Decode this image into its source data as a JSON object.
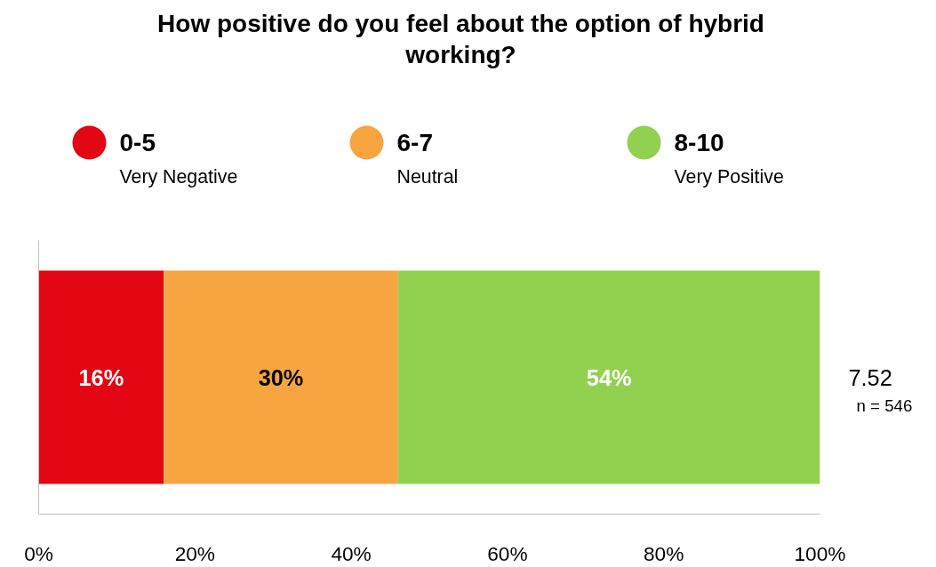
{
  "chart_data": {
    "type": "bar",
    "orientation": "horizontal",
    "stacked": true,
    "title": "How positive do you feel about the option of hybrid working?",
    "categories": [
      null
    ],
    "series": [
      {
        "name": "0-5\nVery Negative",
        "color": "#e30613",
        "values": [
          16
        ]
      },
      {
        "name": "6-7\nNeutral",
        "color": "#f7a541",
        "values": [
          30
        ]
      },
      {
        "name": "8-10\nVery Positive",
        "color": "#92d050",
        "values": [
          54
        ]
      }
    ],
    "value_labels": [
      "16%",
      "30%",
      "54%"
    ],
    "xlim": [
      0,
      100
    ],
    "xticks": [
      {
        "value": 0,
        "label": "0%"
      },
      {
        "value": 20,
        "label": "20%"
      },
      {
        "value": 40,
        "label": "40%"
      },
      {
        "value": 60,
        "label": "60%"
      },
      {
        "value": 80,
        "label": "80%"
      },
      {
        "value": 100,
        "label": "100%"
      }
    ],
    "legend": "top",
    "grid": false,
    "annotations": [
      "7.52",
      "n = 546"
    ]
  }
}
